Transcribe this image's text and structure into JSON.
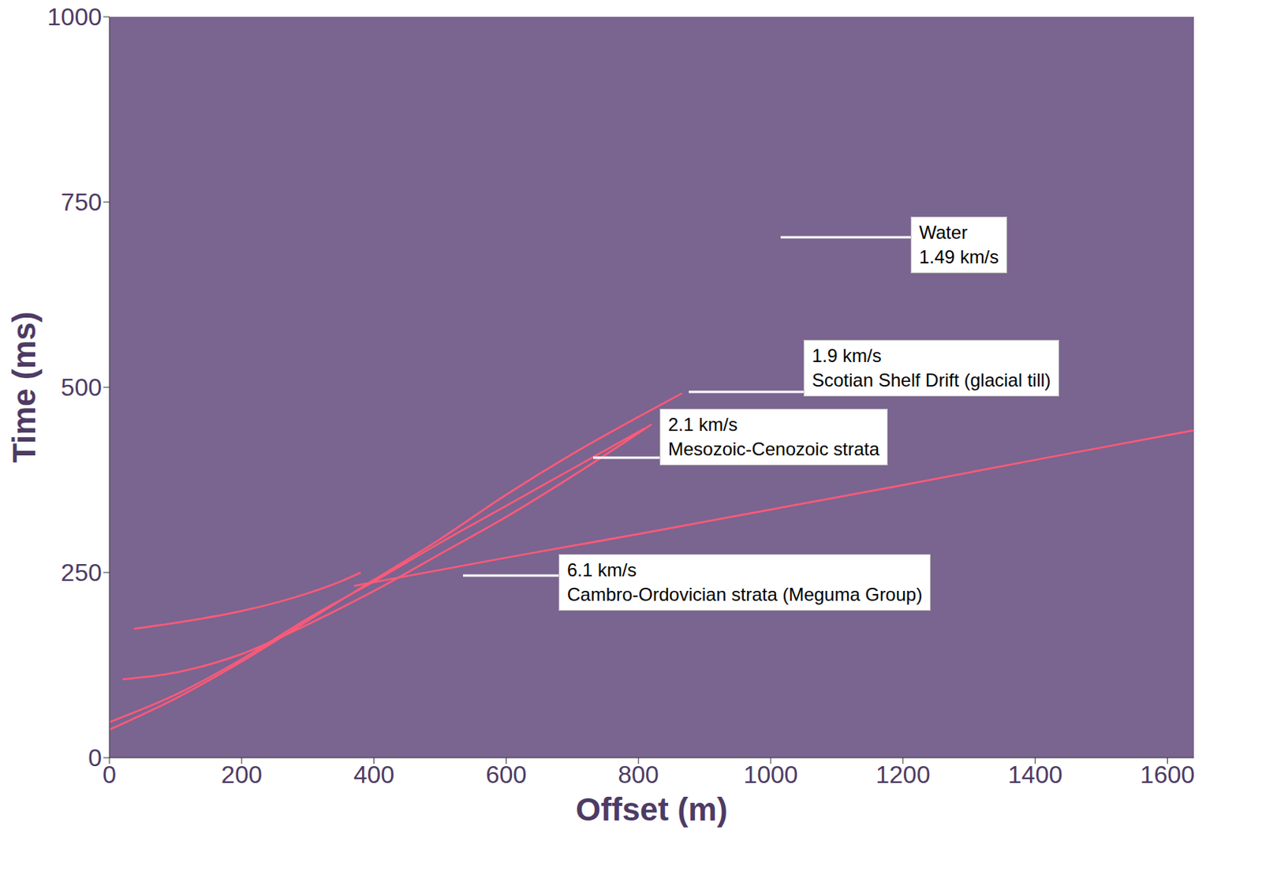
{
  "chart_data": {
    "type": "line",
    "x_label": "Offset (m)",
    "y_label": "Time (ms)",
    "xlim": [
      0,
      1640
    ],
    "xticks": [
      0,
      200,
      400,
      600,
      800,
      1000,
      1200,
      1400,
      1600
    ],
    "ylim": [
      0,
      1000
    ],
    "yticks": [
      0,
      250,
      500,
      750,
      1000
    ],
    "grid": false,
    "series": [
      {
        "color": "#ff5a78",
        "x": [
          0,
          100,
          200,
          300,
          400,
          500,
          600,
          700,
          800,
          866
        ],
        "values": [
          38,
          80,
          130,
          185,
          240,
          295,
          355,
          410,
          460,
          492
        ]
      },
      {
        "color": "#ff5a78",
        "x": [
          0,
          100,
          200,
          300,
          400,
          500,
          600,
          700,
          810
        ],
        "values": [
          48,
          85,
          133,
          188,
          238,
          290,
          340,
          390,
          445
        ]
      },
      {
        "color": "#ff5a78",
        "x": [
          20,
          100,
          200,
          300,
          400,
          500,
          600,
          700,
          820
        ],
        "values": [
          106,
          115,
          140,
          180,
          225,
          275,
          325,
          380,
          450
        ]
      },
      {
        "color": "#ff5a78",
        "x": [
          37,
          100,
          200,
          300,
          350,
          380
        ],
        "values": [
          174,
          182,
          198,
          222,
          238,
          250
        ]
      },
      {
        "color": "#ff5a78",
        "x": [
          370,
          600,
          800,
          1000,
          1200,
          1400,
          1640
        ],
        "values": [
          232,
          270,
          302,
          335,
          368,
          402,
          442
        ]
      }
    ],
    "annotations": [
      {
        "text": [
          "Water",
          "1.49 km/s"
        ]
      },
      {
        "text": [
          "1.9 km/s",
          "Scotian Shelf Drift (glacial till)"
        ]
      },
      {
        "text": [
          "2.1 km/s",
          "Mesozoic-Cenozoic strata"
        ]
      },
      {
        "text": [
          "6.1 km/s",
          "Cambro-Ordovician strata (Meguma Group)"
        ]
      }
    ]
  }
}
